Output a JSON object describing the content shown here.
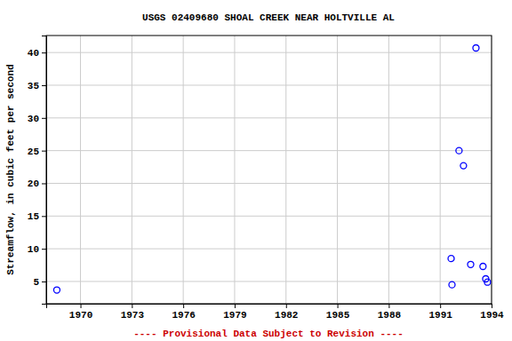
{
  "chart_data": {
    "type": "scatter",
    "title": "USGS 02409680 SHOAL CREEK NEAR HOLTVILLE AL",
    "y_label": "Streamflow, in cubic feet per second",
    "annotation": "---- Provisional Data Subject to Revision ----",
    "x": [
      1968.62,
      1991.64,
      1991.69,
      1992.1,
      1992.36,
      1992.78,
      1993.09,
      1993.5,
      1993.66,
      1993.76
    ],
    "values": [
      3.7,
      8.5,
      4.5,
      25.0,
      22.7,
      7.6,
      40.7,
      7.3,
      5.4,
      4.9
    ],
    "color": "#0000ff",
    "marker": "circle-open",
    "xlim": [
      1968,
      1994
    ],
    "xticks": [
      1970,
      1973,
      1976,
      1979,
      1982,
      1985,
      1988,
      1991,
      1994
    ],
    "ylim": [
      1.6,
      42.6
    ],
    "yticks": [
      5,
      10,
      15,
      20,
      25,
      30,
      35,
      40
    ],
    "grid": true
  }
}
